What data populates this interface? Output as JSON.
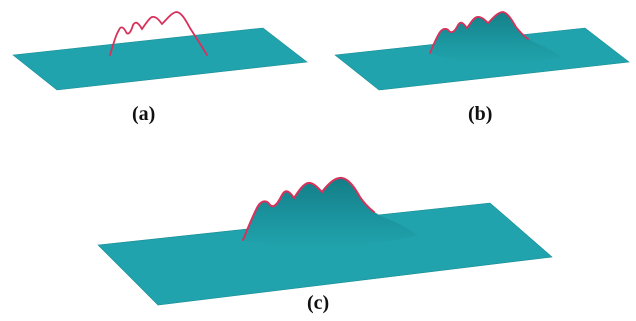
{
  "figure": {
    "panels": [
      {
        "id": "a",
        "label": "(a)"
      },
      {
        "id": "b",
        "label": "(b)"
      },
      {
        "id": "c",
        "label": "(c)"
      }
    ]
  },
  "colors": {
    "surface": "#20a3ac",
    "surface_edge": "#1a8e97",
    "surface_shade": "#178891",
    "curve": "#d8315b"
  }
}
